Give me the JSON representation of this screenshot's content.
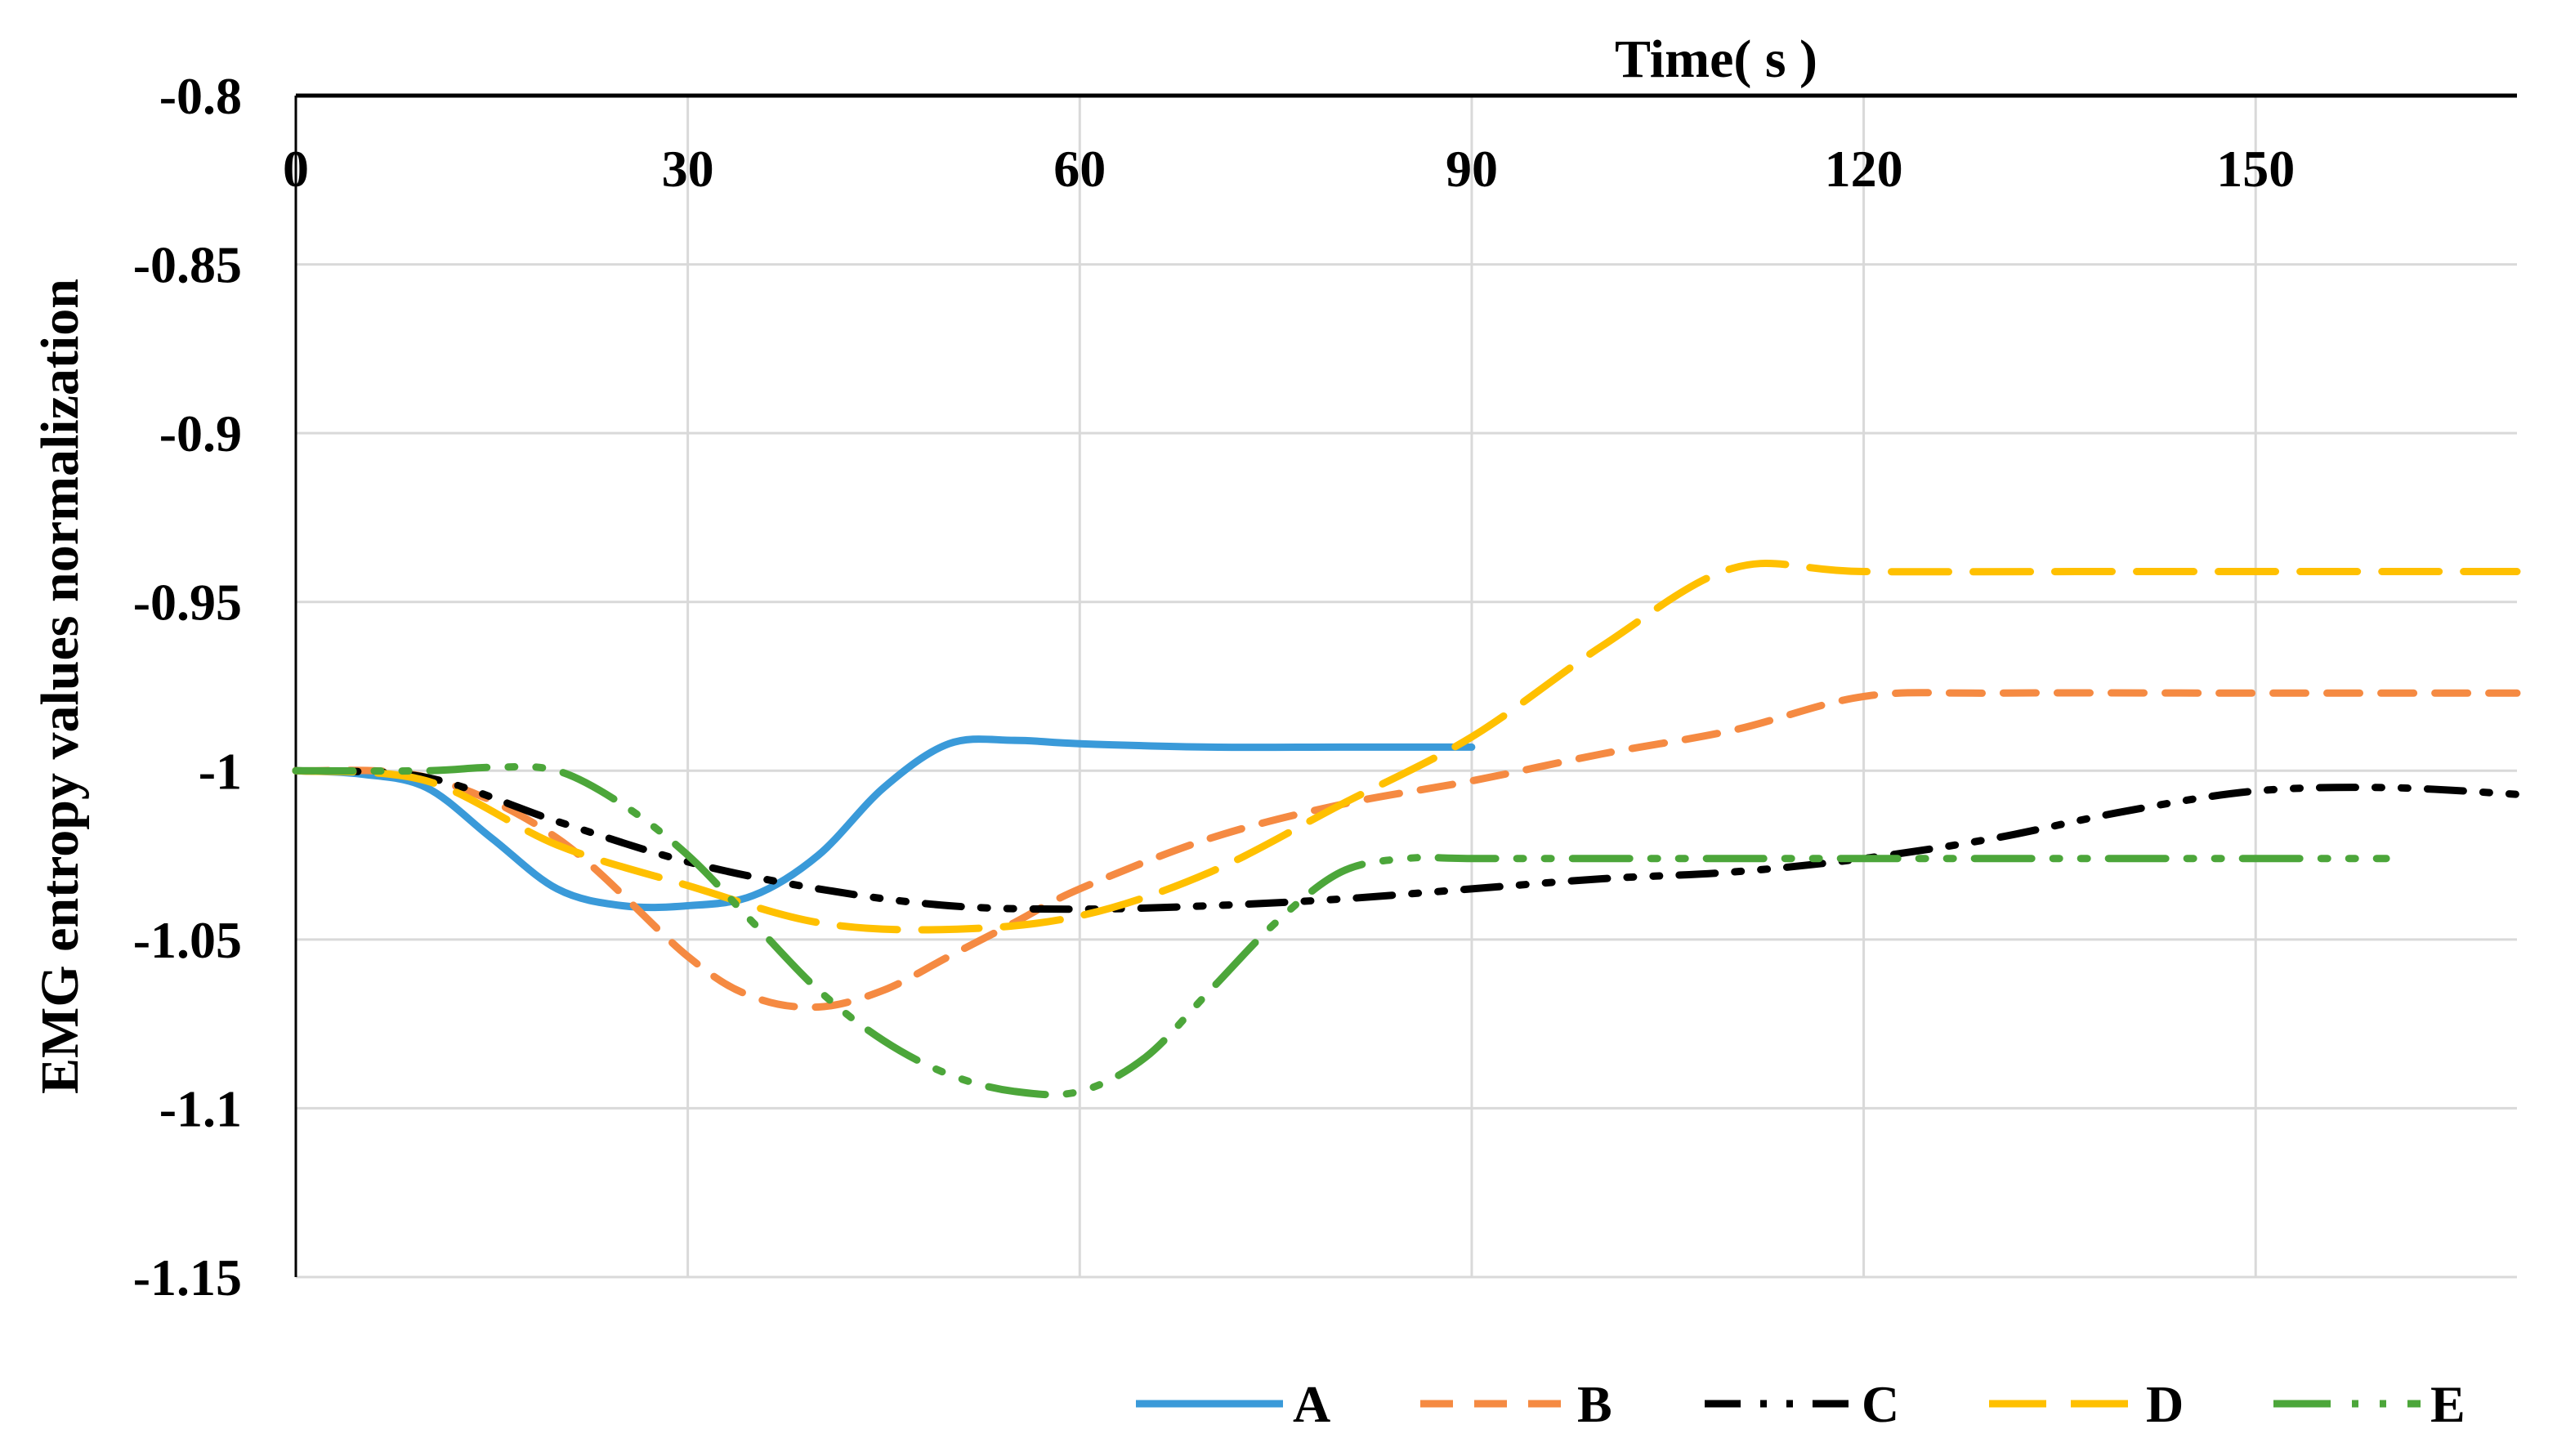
{
  "chart_data": {
    "type": "line",
    "title": "",
    "xlabel": "Time( s )",
    "ylabel": "EMG entropy values normalization",
    "xlim": [
      0,
      170
    ],
    "ylim": [
      -1.15,
      -0.8
    ],
    "x_axis_position": "top",
    "x_ticks": [
      0,
      30,
      60,
      90,
      120,
      150
    ],
    "x_tick_labels": [
      "0",
      "30",
      "60",
      "90",
      "120",
      "150"
    ],
    "y_ticks": [
      -0.8,
      -0.85,
      -0.9,
      -0.95,
      -1,
      -1.05,
      -1.1,
      -1.15
    ],
    "y_tick_labels": [
      "-0.8",
      "-0.85",
      "-0.9",
      "-0.95",
      "-1",
      "-1.05",
      "-1.1",
      "-1.15"
    ],
    "grid": "vertical and horizontal",
    "legend_position": "bottom-right",
    "series": [
      {
        "name": "A",
        "color": "#3a9ad9",
        "dash": "solid",
        "x": [
          0,
          5,
          10,
          15,
          20,
          25,
          30,
          35,
          40,
          45,
          50,
          55,
          60,
          70,
          80,
          90
        ],
        "y": [
          -1,
          -1.001,
          -1.005,
          -1.02,
          -1.035,
          -1.04,
          -1.04,
          -1.037,
          -1.025,
          -1.005,
          -0.992,
          -0.991,
          -0.992,
          -0.993,
          -0.993,
          -0.993
        ]
      },
      {
        "name": "B",
        "color": "#f58a42",
        "dash": "dash",
        "x": [
          0,
          10,
          20,
          30,
          35,
          40,
          45,
          50,
          55,
          60,
          70,
          80,
          90,
          100,
          110,
          120,
          130,
          150,
          170
        ],
        "y": [
          -1,
          -1.002,
          -1.02,
          -1.055,
          -1.067,
          -1.07,
          -1.065,
          -1.055,
          -1.045,
          -1.035,
          -1.02,
          -1.01,
          -1.003,
          -0.995,
          -0.988,
          -0.978,
          -0.977,
          -0.977,
          -0.977
        ]
      },
      {
        "name": "C",
        "color": "#000000",
        "dash": "dash-dot-dot",
        "x": [
          0,
          10,
          20,
          30,
          40,
          50,
          60,
          70,
          80,
          90,
          100,
          110,
          120,
          130,
          140,
          150,
          160,
          170
        ],
        "y": [
          -1,
          -1.002,
          -1.015,
          -1.027,
          -1.035,
          -1.04,
          -1.041,
          -1.04,
          -1.038,
          -1.035,
          -1.032,
          -1.03,
          -1.026,
          -1.02,
          -1.012,
          -1.006,
          -1.005,
          -1.007
        ]
      },
      {
        "name": "D",
        "color": "#ffc000",
        "dash": "long-dash",
        "x": [
          0,
          10,
          20,
          30,
          40,
          50,
          60,
          70,
          80,
          90,
          100,
          110,
          120,
          140,
          170
        ],
        "y": [
          -1,
          -1.003,
          -1.022,
          -1.034,
          -1.045,
          -1.047,
          -1.043,
          -1.03,
          -1.01,
          -0.99,
          -0.963,
          -0.94,
          -0.941,
          -0.941,
          -0.941
        ]
      },
      {
        "name": "E",
        "color": "#4ca63a",
        "dash": "long-dash-dot-dot",
        "x": [
          0,
          10,
          15,
          20,
          25,
          30,
          35,
          40,
          45,
          50,
          55,
          60,
          65,
          70,
          75,
          80,
          85,
          90,
          100,
          110,
          120,
          130,
          140,
          150,
          160
        ],
        "y": [
          -1,
          -1,
          -0.999,
          -1.0,
          -1.01,
          -1.025,
          -1.045,
          -1.065,
          -1.08,
          -1.09,
          -1.095,
          -1.095,
          -1.085,
          -1.065,
          -1.045,
          -1.03,
          -1.026,
          -1.026,
          -1.026,
          -1.026,
          -1.026,
          -1.026,
          -1.026,
          -1.026,
          -1.026
        ]
      }
    ]
  }
}
